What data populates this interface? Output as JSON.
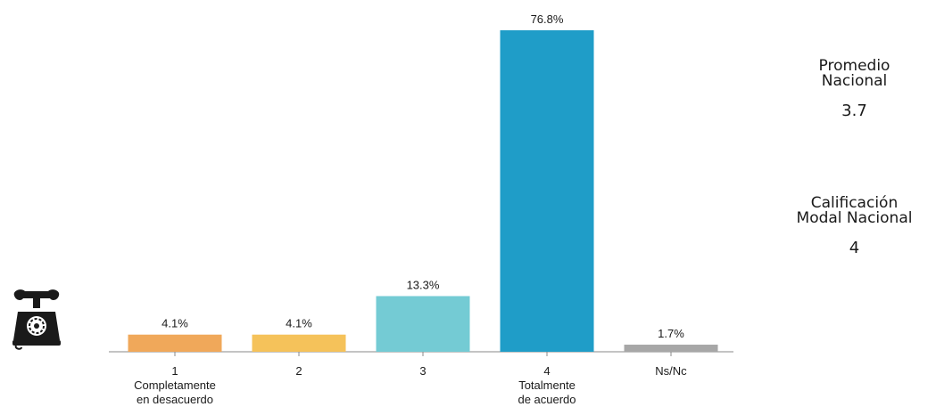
{
  "chart_data": {
    "type": "bar",
    "categories": [
      [
        "1",
        "Completamente",
        "en desacuerdo"
      ],
      [
        "2"
      ],
      [
        "3"
      ],
      [
        "4",
        "Totalmente",
        "de acuerdo"
      ],
      [
        "Ns/Nc"
      ]
    ],
    "values": [
      4.1,
      4.1,
      13.3,
      76.8,
      1.7
    ],
    "value_labels": [
      "4.1%",
      "4.1%",
      "13.3%",
      "76.8%",
      "1.7%"
    ],
    "colors": [
      "#F0A85A",
      "#F5C25A",
      "#74CBD4",
      "#1F9DC8",
      "#A7A7A7"
    ],
    "ylim": [
      0,
      80
    ],
    "grid": false,
    "legend": "none"
  },
  "stats": {
    "promedio": {
      "title_line1": "Promedio",
      "title_line2": "Nacional",
      "value": "3.7"
    },
    "modal": {
      "title_line1": "Calificación",
      "title_line2": "Modal Nacional",
      "value": "4"
    }
  },
  "decor": {
    "phone_icon": "telephone-icon"
  }
}
